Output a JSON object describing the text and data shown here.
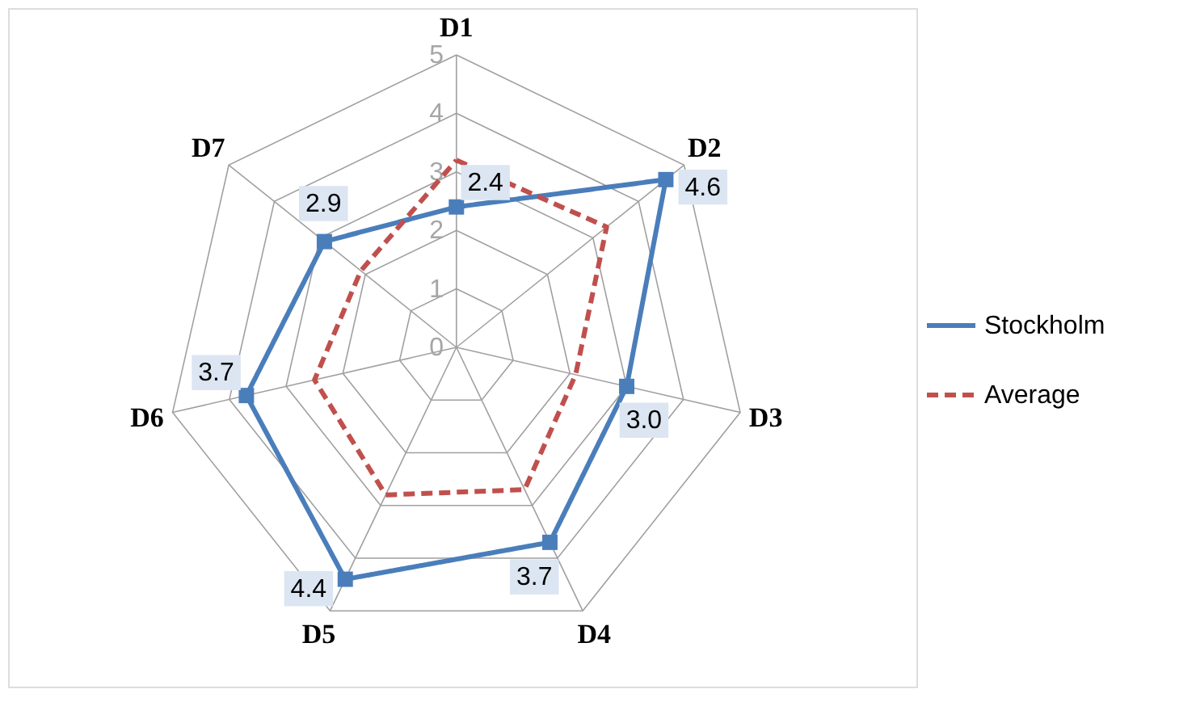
{
  "chart_data": {
    "type": "radar",
    "categories": [
      "D1",
      "D2",
      "D3",
      "D4",
      "D5",
      "D6",
      "D7"
    ],
    "ylim": [
      0,
      5
    ],
    "yticks": [
      0,
      1,
      2,
      3,
      4,
      5
    ],
    "grid": true,
    "legend": "right",
    "series": [
      {
        "name": "Stockholm",
        "color": "#4a7ebb",
        "values": [
          2.4,
          4.6,
          3.0,
          3.7,
          4.4,
          3.7,
          2.9
        ],
        "value_labels": [
          "2.4",
          "4.6",
          "3.0",
          "3.7",
          "4.4",
          "3.7",
          "2.9"
        ],
        "marker": "square",
        "line_style": "solid"
      },
      {
        "name": "Average",
        "color": "#c0504d",
        "values": [
          3.2,
          3.3,
          2.1,
          2.7,
          2.8,
          2.5,
          2.1
        ],
        "marker": "none",
        "line_style": "dashed"
      }
    ]
  }
}
